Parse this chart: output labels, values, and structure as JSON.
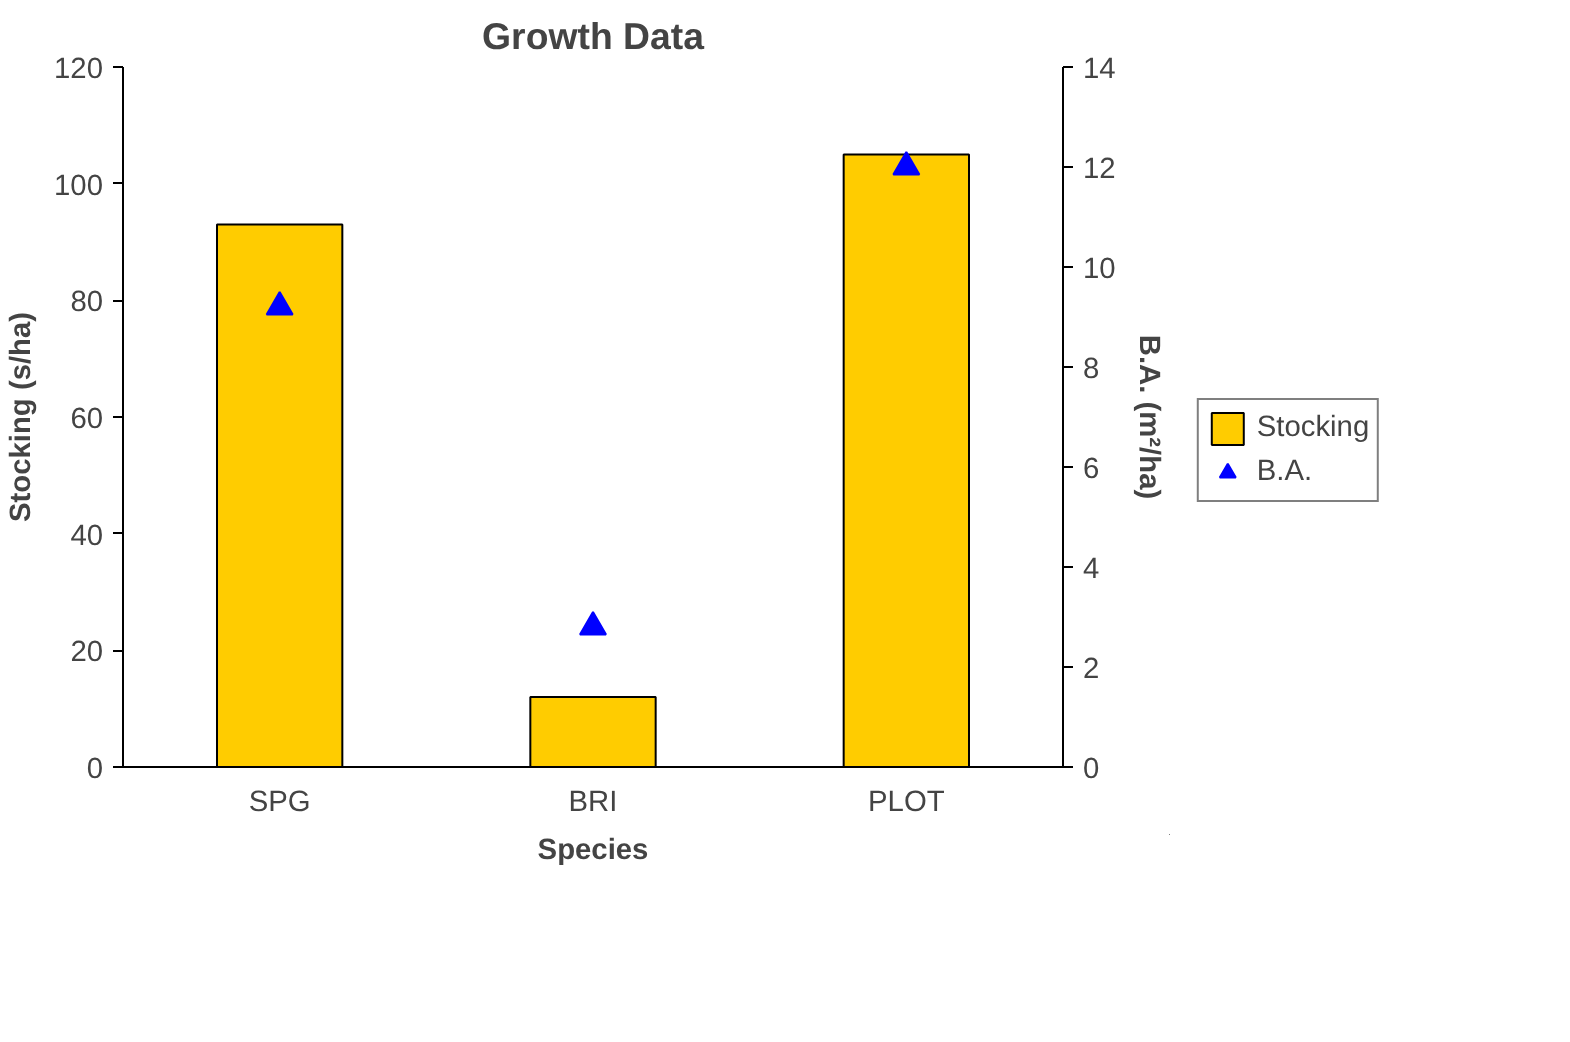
{
  "chart_data": {
    "type": "bar",
    "title": "Growth Data",
    "xlabel": "Species",
    "ylabel": "Stocking (s/ha)",
    "y2label": "B.A. (m²/ha)",
    "categories": [
      "SPG",
      "BRI",
      "PLOT"
    ],
    "series": [
      {
        "name": "Stocking",
        "color": "#ffcc00",
        "values": [
          93,
          12,
          105
        ]
      },
      {
        "name": "B.A.",
        "type": "scatter",
        "axis": "y2",
        "marker": "triangle",
        "color": "#0000ff",
        "values": [
          9.2,
          2.8,
          12.0
        ]
      }
    ],
    "ylim": [
      0,
      120
    ],
    "yticks": [
      0,
      20,
      40,
      60,
      80,
      100,
      120
    ],
    "y2lim": [
      0,
      14
    ],
    "y2ticks": [
      0,
      2,
      4,
      6,
      8,
      10,
      12,
      14
    ],
    "grid": false,
    "legend": "right"
  }
}
